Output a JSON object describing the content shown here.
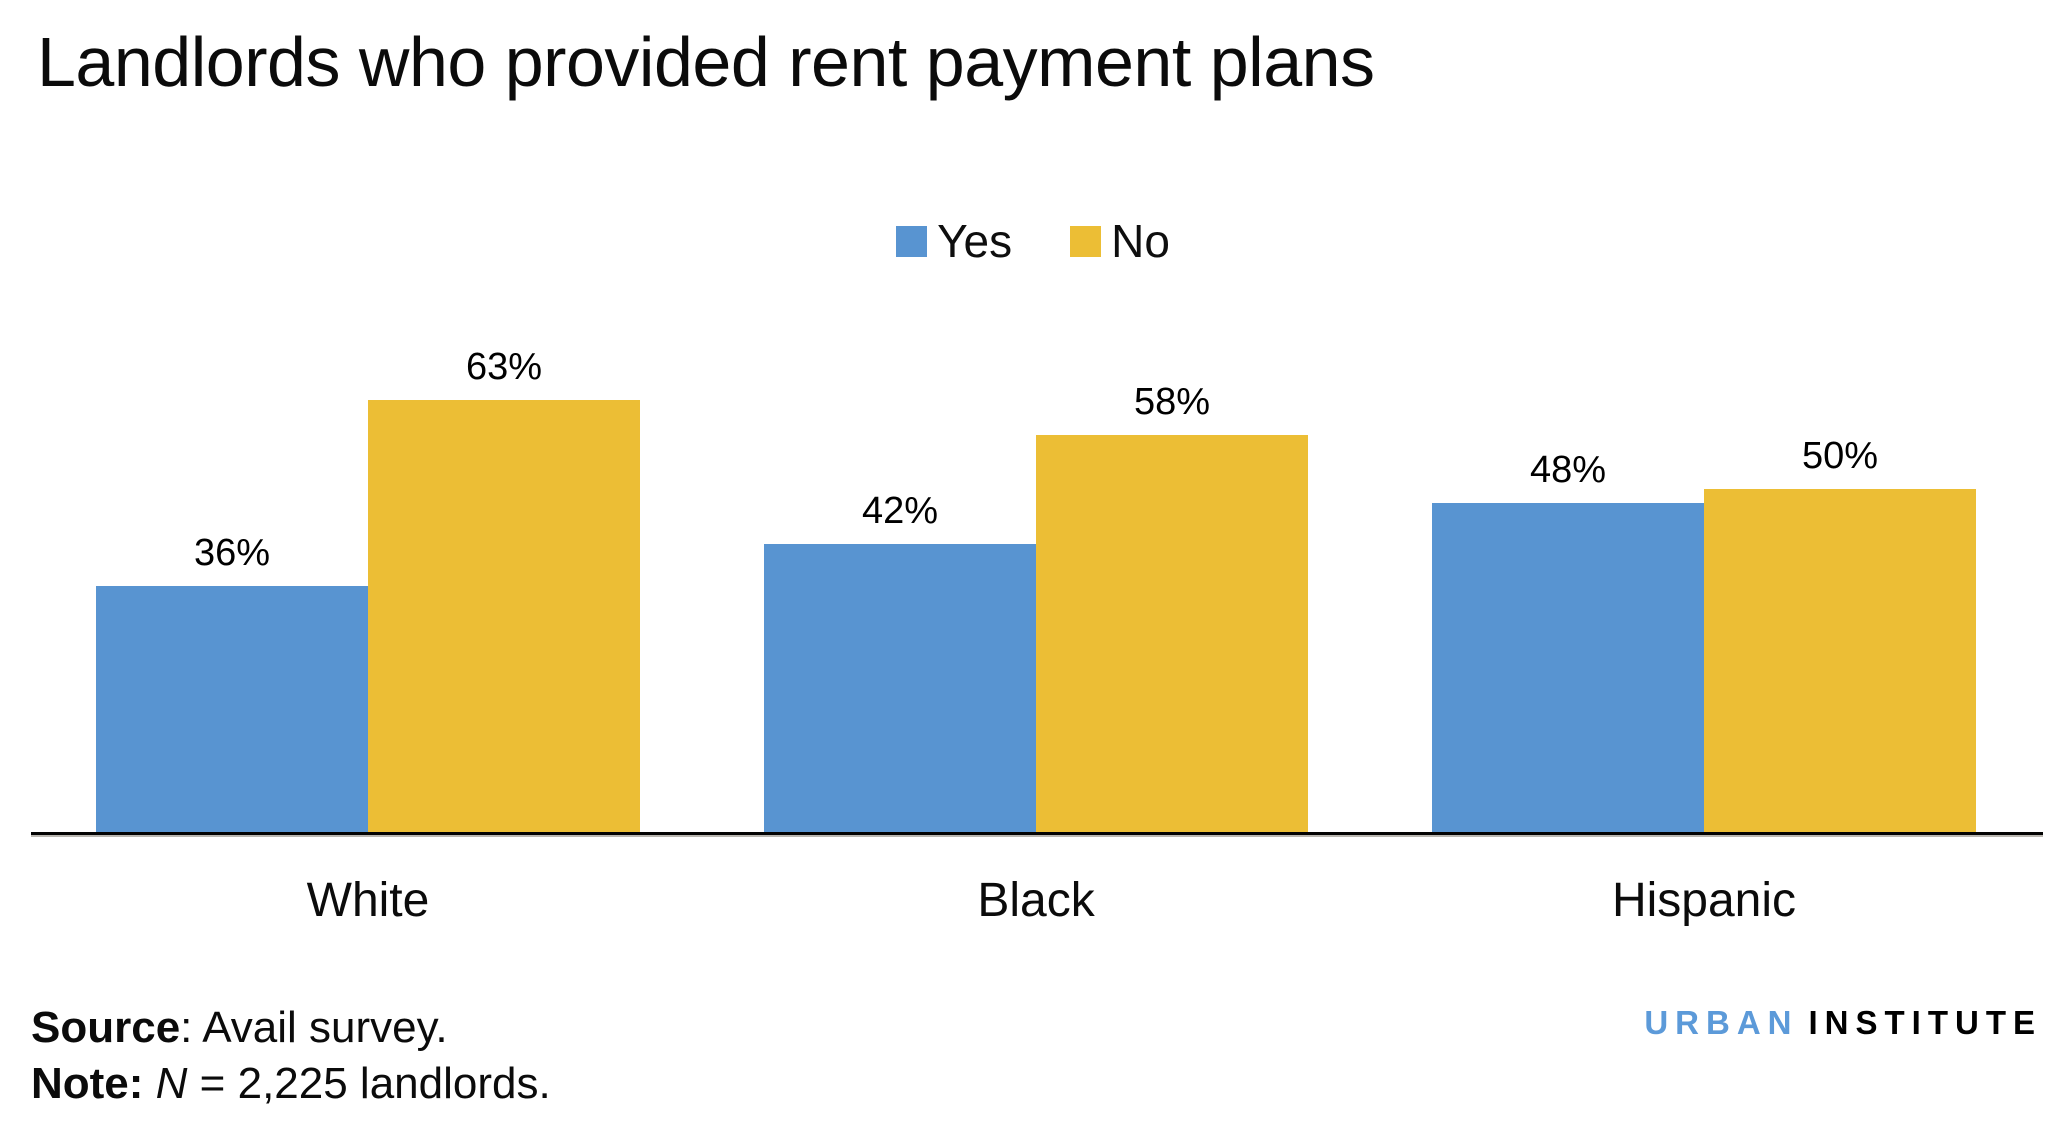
{
  "title": "Landlords who provided rent payment plans",
  "legend": {
    "items": [
      {
        "label": "Yes",
        "color": "#5894D1"
      },
      {
        "label": "No",
        "color": "#ECBE35"
      }
    ]
  },
  "chart_data": {
    "type": "bar",
    "title": "Landlords who provided rent payment plans",
    "categories": [
      "White",
      "Black",
      "Hispanic"
    ],
    "series": [
      {
        "name": "Yes",
        "color": "#5894D1",
        "values": [
          36,
          42,
          48
        ]
      },
      {
        "name": "No",
        "color": "#ECBE35",
        "values": [
          63,
          58,
          50
        ]
      }
    ],
    "display_labels": [
      [
        "36%",
        "63%"
      ],
      [
        "42%",
        "58%"
      ],
      [
        "48%",
        "50%"
      ]
    ],
    "unit": "percent",
    "ylim": [
      0,
      70
    ],
    "grid": false,
    "y_axis_ticks_shown": false,
    "value_labels_shown": true,
    "legend_position": "top-center",
    "xlabel": "",
    "ylabel": ""
  },
  "footer": {
    "source_label": "Source",
    "source_text": ": Avail survey.",
    "note_label": "Note:",
    "note_italic": "N",
    "note_text": " = 2,225 landlords.",
    "logo": {
      "part1": "URBAN",
      "part2": "INSTITUTE",
      "part1_color": "#5C9AD9",
      "part2_color": "#000000"
    }
  }
}
